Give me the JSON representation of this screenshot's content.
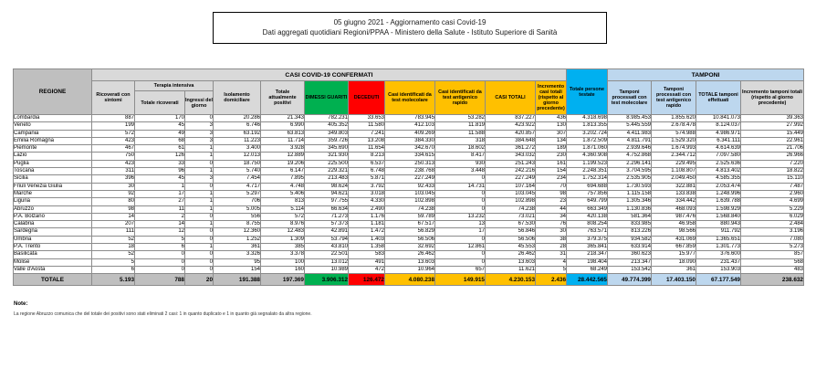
{
  "report_header": {
    "line1": "05 giugno 2021 - Aggiornamento casi Covid-19",
    "line2": "Dati aggregati quotidiani Regioni/PPAA - Ministero della Salute - Istituto Superiore di Sanità"
  },
  "table": {
    "banners": {
      "confirmed": "CASI COVID-19 CONFERMATI",
      "tamponi": "TAMPONI"
    },
    "labels": {
      "regione": "REGIONE",
      "ricoverati": "Ricoverati con sintomi",
      "terapia_intensiva": "Terapia intensiva",
      "ti_totale": "Totale ricoverati",
      "ti_ingressi": "Ingressi del giorno",
      "isolamento": "Isolamento domiciliare",
      "attualmente_positivi": "Totale attualmente positivi",
      "dimessi_guariti": "DIMESSI GUARITI",
      "deceduti": "DECEDUTI",
      "casi_molecolare": "Casi identificati da test molecolare",
      "casi_antigenico": "Casi identificati da test antigenico rapido",
      "casi_totali": "CASI TOTALI",
      "incremento_casi": "Incremento casi totali (rispetto al giorno precedente)",
      "persone_testate": "Totale persone testate",
      "tamponi_molecolare": "Tamponi processati con test molecolare",
      "tamponi_antigenico": "Tamponi processati con test antigenico rapido",
      "tamponi_totale": "TOTALE tamponi effettuati",
      "incremento_tamponi": "Incremento tamponi totali (rispetto al giorno precedente)"
    },
    "rows": [
      [
        "Lombardia",
        "887",
        "170",
        "0",
        "20.286",
        "21.343",
        "782.231",
        "33.653",
        "783.945",
        "53.282",
        "837.227",
        "436",
        "4.318.698",
        "8.985.453",
        "1.855.620",
        "10.841.073",
        "39.363"
      ],
      [
        "Veneto",
        "199",
        "45",
        "3",
        "6.746",
        "6.990",
        "405.352",
        "11.580",
        "412.103",
        "11.819",
        "423.922",
        "130",
        "1.813.355",
        "5.445.559",
        "2.678.478",
        "8.124.037",
        "27.992"
      ],
      [
        "Campania",
        "572",
        "49",
        "3",
        "63.192",
        "63.813",
        "349.803",
        "7.241",
        "409.269",
        "11.588",
        "420.857",
        "307",
        "3.202.724",
        "4.411.983",
        "574.988",
        "4.986.971",
        "15.449"
      ],
      [
        "Emilia Romagna",
        "423",
        "68",
        "3",
        "11.223",
        "11.714",
        "359.726",
        "13.208",
        "384.330",
        "318",
        "384.648",
        "134",
        "1.872.509",
        "4.811.791",
        "1.529.320",
        "6.341.111",
        "22.961"
      ],
      [
        "Piemonte",
        "467",
        "61",
        "1",
        "3.400",
        "3.928",
        "345.690",
        "11.654",
        "342.670",
        "18.602",
        "361.272",
        "189",
        "1.871.060",
        "2.939.646",
        "1.674.993",
        "4.614.639",
        "21.706"
      ],
      [
        "Lazio",
        "750",
        "126",
        "1",
        "12.013",
        "12.889",
        "321.930",
        "8.213",
        "334.615",
        "8.417",
        "343.032",
        "230",
        "4.360.908",
        "4.752.868",
        "2.344.712",
        "7.097.580",
        "26.966"
      ],
      [
        "Puglia",
        "423",
        "33",
        "0",
        "18.750",
        "19.206",
        "225.500",
        "6.537",
        "250.313",
        "930",
        "251.243",
        "161",
        "1.199.523",
        "2.296.141",
        "229.495",
        "2.525.636",
        "7.220"
      ],
      [
        "Toscana",
        "311",
        "96",
        "1",
        "5.740",
        "6.147",
        "229.321",
        "6.748",
        "238.768",
        "3.448",
        "242.216",
        "154",
        "2.248.351",
        "3.704.595",
        "1.108.807",
        "4.813.402",
        "18.822"
      ],
      [
        "Sicilia",
        "396",
        "45",
        "3",
        "7.454",
        "7.895",
        "213.483",
        "5.871",
        "227.249",
        "0",
        "227.249",
        "234",
        "1.752.314",
        "2.535.905",
        "2.049.450",
        "4.585.355",
        "15.110"
      ],
      [
        "Friuli Venezia Giulia",
        "30",
        "1",
        "0",
        "4.717",
        "4.748",
        "98.624",
        "3.792",
        "92.433",
        "14.731",
        "107.164",
        "70",
        "694.688",
        "1.730.593",
        "322.881",
        "2.053.474",
        "7.487"
      ],
      [
        "Marche",
        "92",
        "17",
        "1",
        "5.297",
        "5.406",
        "94.621",
        "3.018",
        "103.045",
        "0",
        "103.045",
        "98",
        "757.856",
        "1.115.158",
        "133.838",
        "1.248.996",
        "2.960"
      ],
      [
        "Liguria",
        "80",
        "27",
        "1",
        "706",
        "813",
        "97.755",
        "4.330",
        "102.898",
        "0",
        "102.898",
        "23",
        "649.799",
        "1.305.346",
        "334.442",
        "1.639.788",
        "4.699"
      ],
      [
        "Abruzzo",
        "98",
        "11",
        "1",
        "5.005",
        "5.114",
        "66.634",
        "2.490",
        "74.238",
        "0",
        "74.238",
        "44",
        "663.349",
        "1.130.836",
        "468.093",
        "1.598.929",
        "5.229"
      ],
      [
        "P.A. Bolzano",
        "14",
        "2",
        "0",
        "556",
        "572",
        "71.273",
        "1.176",
        "59.789",
        "13.232",
        "73.021",
        "34",
        "420.138",
        "581.364",
        "987.476",
        "1.568.840",
        "6.029"
      ],
      [
        "Calabria",
        "207",
        "14",
        "1",
        "8.755",
        "8.976",
        "57.373",
        "1.181",
        "67.517",
        "13",
        "67.530",
        "76",
        "808.254",
        "833.985",
        "46.958",
        "880.943",
        "2.484"
      ],
      [
        "Sardegna",
        "111",
        "12",
        "0",
        "12.360",
        "12.483",
        "42.891",
        "1.472",
        "56.829",
        "17",
        "56.846",
        "30",
        "763.571",
        "813.226",
        "98.566",
        "911.792",
        "3.196"
      ],
      [
        "Umbria",
        "52",
        "5",
        "0",
        "1.252",
        "1.309",
        "53.794",
        "1.403",
        "56.506",
        "0",
        "56.506",
        "38",
        "379.375",
        "934.582",
        "431.069",
        "1.365.651",
        "7.080"
      ],
      [
        "P.A. Trento",
        "18",
        "6",
        "1",
        "361",
        "385",
        "43.810",
        "1.358",
        "32.692",
        "12.861",
        "45.553",
        "28",
        "365.841",
        "633.914",
        "667.859",
        "1.301.773",
        "5.273"
      ],
      [
        "Basilicata",
        "52",
        "0",
        "0",
        "3.326",
        "3.378",
        "22.501",
        "583",
        "26.462",
        "0",
        "26.462",
        "31",
        "218.347",
        "360.623",
        "15.977",
        "376.600",
        "857"
      ],
      [
        "Molise",
        "5",
        "0",
        "0",
        "95",
        "100",
        "13.012",
        "491",
        "13.603",
        "0",
        "13.603",
        "4",
        "198.404",
        "213.347",
        "18.090",
        "231.437",
        "568"
      ],
      [
        "Valle d'Aosta",
        "6",
        "0",
        "0",
        "154",
        "160",
        "10.989",
        "472",
        "10.964",
        "657",
        "11.621",
        "5",
        "68.249",
        "153.542",
        "361",
        "153.903",
        "483"
      ]
    ],
    "total_row": [
      "TOTALE",
      "5.193",
      "788",
      "20",
      "191.388",
      "197.369",
      "3.906.312",
      "126.472",
      "4.080.238",
      "149.915",
      "4.230.153",
      "2.436",
      "28.442.565",
      "49.774.399",
      "17.403.150",
      "67.177.549",
      "238.632"
    ]
  },
  "notes": {
    "title": "Note:",
    "line": "La regione Abruzzo comunica che del totale dei positivi sono stati eliminati 2 casi: 1 in quanto duplicato e 1 in quanto già segnalato da altra regione."
  },
  "colors": {
    "green": "#00b050",
    "red": "#ff0000",
    "amber": "#ffc000",
    "blue": "#00b0f0",
    "light_blue": "#bdd7ee",
    "gray": "#bfbfbf",
    "light_gray": "#d9d9d9"
  }
}
